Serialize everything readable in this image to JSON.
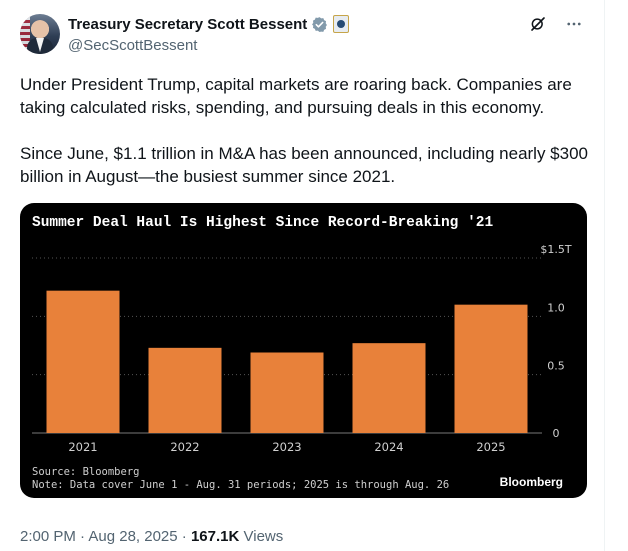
{
  "tweet": {
    "author_name": "Treasury Secretary Scott Bessent",
    "handle": "@SecScottBessent",
    "text": "Under President Trump, capital markets are roaring back. Companies are taking calculated risks, spending, and pursuing deals in this economy.\n\nSince June, $1.1 trillion in M&A has been announced, including nearly $300 billion in August—the busiest summer since 2021.",
    "timestamp": "2:00 PM · Aug 28, 2025",
    "separator": "·",
    "views_count": "167.1K",
    "views_label": "Views"
  },
  "icons": {
    "verified": "verified-check-icon",
    "gov_badge": "government-badge-icon",
    "grok": "grok-icon",
    "more": "more-icon"
  },
  "colors": {
    "bar": "#e8813a",
    "chart_bg": "#000000",
    "verified": "#829aab"
  },
  "chart_data": {
    "type": "bar",
    "title": "Summer Deal Haul Is Highest Since Record-Breaking '21",
    "categories": [
      "2021",
      "2022",
      "2023",
      "2024",
      "2025"
    ],
    "values": [
      1.22,
      0.73,
      0.69,
      0.77,
      1.1
    ],
    "ylim": [
      0,
      1.5
    ],
    "yticks": [
      {
        "value": 1.5,
        "label": "$1.5T"
      },
      {
        "value": 1.0,
        "label": "1.0"
      },
      {
        "value": 0.5,
        "label": "0.5"
      },
      {
        "value": 0,
        "label": "0"
      }
    ],
    "source": "Source: Bloomberg",
    "note": "Note: Data cover June 1 - Aug. 31 periods; 2025 is through Aug. 26",
    "brand": "Bloomberg",
    "grid": true
  }
}
